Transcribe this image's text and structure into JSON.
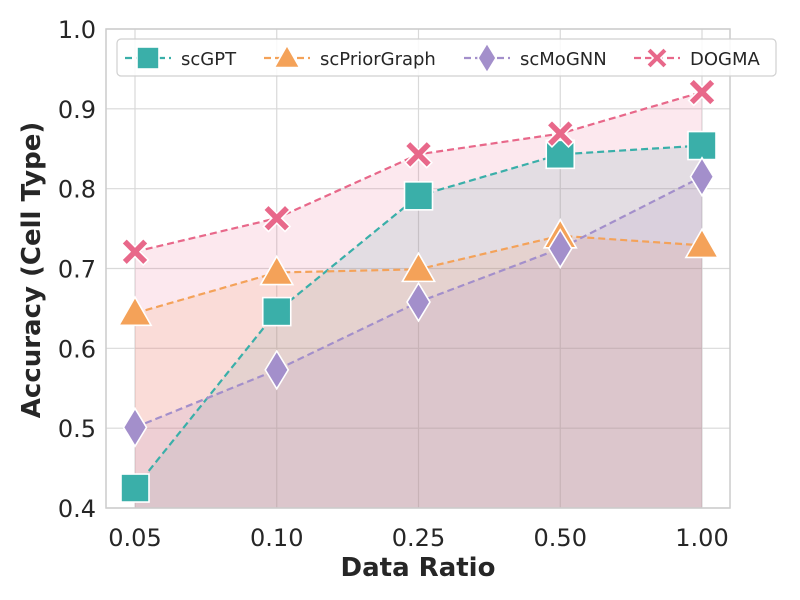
{
  "chart_data": {
    "type": "line",
    "xlabel": "Data Ratio",
    "ylabel": "Accuracy (Cell Type)",
    "categories": [
      "0.05",
      "0.10",
      "0.25",
      "0.50",
      "1.00"
    ],
    "ylim": [
      0.4,
      1.0
    ],
    "yticks": [
      "0.4",
      "0.5",
      "0.6",
      "0.7",
      "0.8",
      "0.9",
      "1.0"
    ],
    "grid": true,
    "legend_position": "top",
    "series": [
      {
        "name": "scGPT",
        "values": [
          0.425,
          0.646,
          0.791,
          0.843,
          0.854
        ],
        "color": "#3aafa9",
        "marker": "square"
      },
      {
        "name": "scPriorGraph",
        "values": [
          0.644,
          0.695,
          0.699,
          0.741,
          0.729
        ],
        "color": "#f4a259",
        "marker": "triangle"
      },
      {
        "name": "scMoGNN",
        "values": [
          0.501,
          0.573,
          0.658,
          0.725,
          0.815
        ],
        "color": "#a38fcb",
        "marker": "diamond"
      },
      {
        "name": "DOGMA",
        "values": [
          0.721,
          0.763,
          0.843,
          0.869,
          0.921
        ],
        "color": "#e8688a",
        "marker": "x"
      }
    ]
  }
}
